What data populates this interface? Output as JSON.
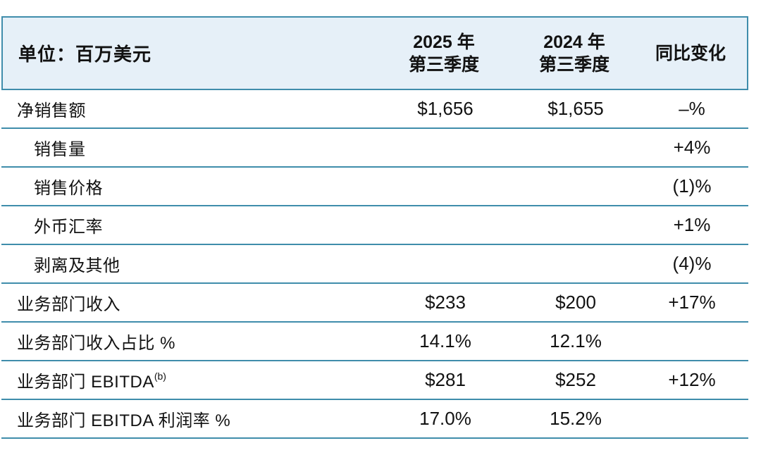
{
  "colors": {
    "rule_teal": "#3f8dab",
    "header_bg": "#e6f0f8",
    "text": "#121212",
    "page_bg": "#ffffff"
  },
  "table": {
    "unit_label": "单位：百万美元",
    "columns": [
      {
        "line1": "2025 年",
        "line2": "第三季度"
      },
      {
        "line1": "2024 年",
        "line2": "第三季度"
      },
      {
        "line1": "同比变化",
        "line2": ""
      }
    ],
    "rows": [
      {
        "label": "净销售额",
        "sup": "",
        "q3_2025": "$1,656",
        "q3_2024": "$1,655",
        "yoy": "–%"
      },
      {
        "label": "销售量",
        "sup": "",
        "q3_2025": "",
        "q3_2024": "",
        "yoy": "+4%"
      },
      {
        "label": "销售价格",
        "sup": "",
        "q3_2025": "",
        "q3_2024": "",
        "yoy": "(1)%"
      },
      {
        "label": "外币汇率",
        "sup": "",
        "q3_2025": "",
        "q3_2024": "",
        "yoy": "+1%"
      },
      {
        "label": "剥离及其他",
        "sup": "",
        "q3_2025": "",
        "q3_2024": "",
        "yoy": "(4)%"
      },
      {
        "label": "业务部门收入",
        "sup": "",
        "q3_2025": "$233",
        "q3_2024": "$200",
        "yoy": "+17%"
      },
      {
        "label": "业务部门收入占比 %",
        "sup": "",
        "q3_2025": "14.1%",
        "q3_2024": "12.1%",
        "yoy": ""
      },
      {
        "label": "业务部门 EBITDA",
        "sup": "(b)",
        "q3_2025": "$281",
        "q3_2024": "$252",
        "yoy": "+12%"
      },
      {
        "label": "业务部门 EBITDA 利润率 %",
        "sup": "",
        "q3_2025": "17.0%",
        "q3_2024": "15.2%",
        "yoy": ""
      }
    ]
  }
}
